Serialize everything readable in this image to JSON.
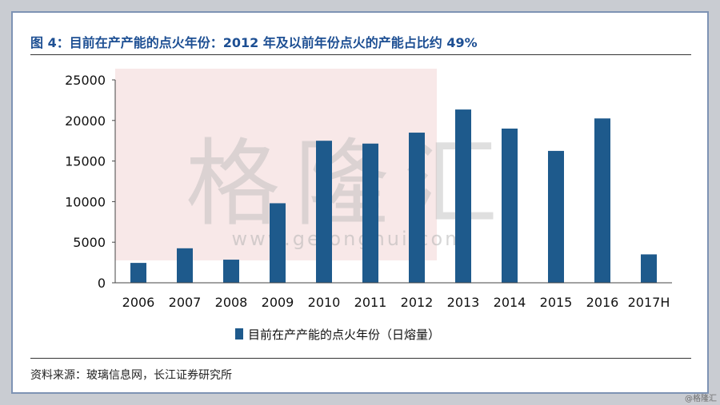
{
  "figure": {
    "title": "图 4：目前在产产能的点火年份：2012 年及以前年份点火的产能占比约 49%",
    "source": "资料来源：玻璃信息网，长江证券研究所",
    "watermark": {
      "text": "格隆汇",
      "url": "www.gelonghui.com"
    },
    "corner_mark": "@格隆汇"
  },
  "colors": {
    "bar": "#1e5a8c",
    "title": "#1d4f93",
    "overlay": "#f3d6d6"
  },
  "chart_data": {
    "type": "bar",
    "categories": [
      "2006",
      "2007",
      "2008",
      "2009",
      "2010",
      "2011",
      "2012",
      "2013",
      "2014",
      "2015",
      "2016",
      "2017H"
    ],
    "series": [
      {
        "name": "目前在产产能的点火年份（日熔量）",
        "values": [
          2450,
          4250,
          2850,
          9800,
          17500,
          17150,
          18500,
          21350,
          19000,
          16250,
          20250,
          3500
        ]
      }
    ],
    "yticks": [
      0,
      5000,
      10000,
      15000,
      20000,
      25000
    ],
    "ylim": [
      0,
      25000
    ],
    "legend_position": "bottom",
    "grid": false
  }
}
